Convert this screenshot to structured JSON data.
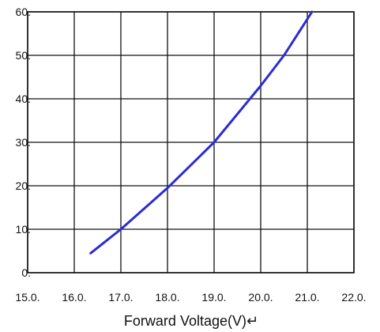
{
  "chart_data": {
    "type": "line",
    "xlabel": "Forward Voltage(V)↵",
    "ylabel": "",
    "xlim": [
      15.0,
      22.0
    ],
    "ylim": [
      0,
      60
    ],
    "x_ticks": [
      15.0,
      16.0,
      17.0,
      18.0,
      19.0,
      20.0,
      21.0,
      22.0
    ],
    "y_ticks": [
      0,
      10,
      20,
      30,
      40,
      50,
      60
    ],
    "x_tick_labels": [
      "15.0.",
      "16.0.",
      "17.0.",
      "18.0.",
      "19.0.",
      "20.0.",
      "21.0.",
      "22.0."
    ],
    "y_tick_labels": [
      "0.",
      "10.",
      "20.",
      "30.",
      "40.",
      "50.",
      "60."
    ],
    "grid": true,
    "series": [
      {
        "color": "#2b2bd6",
        "x": [
          16.35,
          17.0,
          18.0,
          19.0,
          20.0,
          20.5,
          21.1
        ],
        "y": [
          4.5,
          10,
          19.5,
          30,
          43,
          50,
          60
        ]
      }
    ]
  }
}
